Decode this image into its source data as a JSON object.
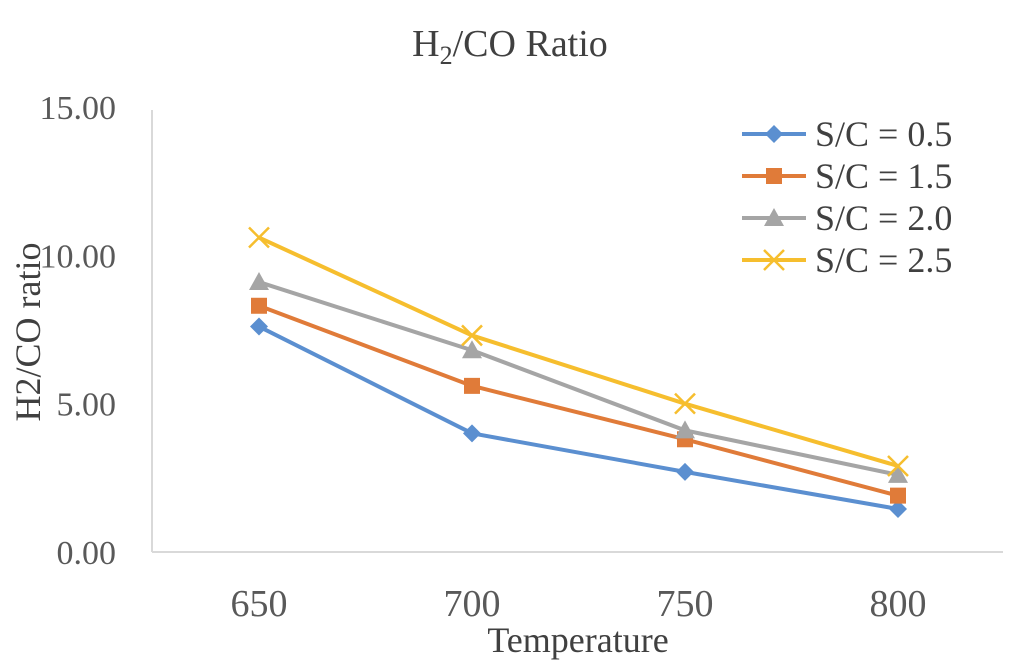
{
  "chart_data": {
    "type": "line",
    "title_main": "H",
    "title_sub": "2",
    "title_rest": "/CO Ratio",
    "xlabel": "Temperature",
    "ylabel": "H2/CO ratio",
    "categories": [
      "650",
      "700",
      "750",
      "800"
    ],
    "ylim": [
      0,
      15
    ],
    "yticks": [
      "0.00",
      "5.00",
      "10.00",
      "15.00"
    ],
    "ytick_values": [
      0,
      5,
      10,
      15
    ],
    "grid": false,
    "legend_position": "top-right",
    "series": [
      {
        "name": "S/C = 0.5",
        "values": [
          7.6,
          4.0,
          2.7,
          1.45
        ],
        "color": "#5B8FD0",
        "marker": "diamond"
      },
      {
        "name": "S/C = 1.5",
        "values": [
          8.3,
          5.6,
          3.8,
          1.9
        ],
        "color": "#E07B39",
        "marker": "square"
      },
      {
        "name": "S/C = 2.0",
        "values": [
          9.1,
          6.8,
          4.1,
          2.6
        ],
        "color": "#A5A5A5",
        "marker": "triangle"
      },
      {
        "name": "S/C = 2.5",
        "values": [
          10.6,
          7.3,
          5.0,
          2.9
        ],
        "color": "#F6BE2E",
        "marker": "x"
      }
    ]
  }
}
